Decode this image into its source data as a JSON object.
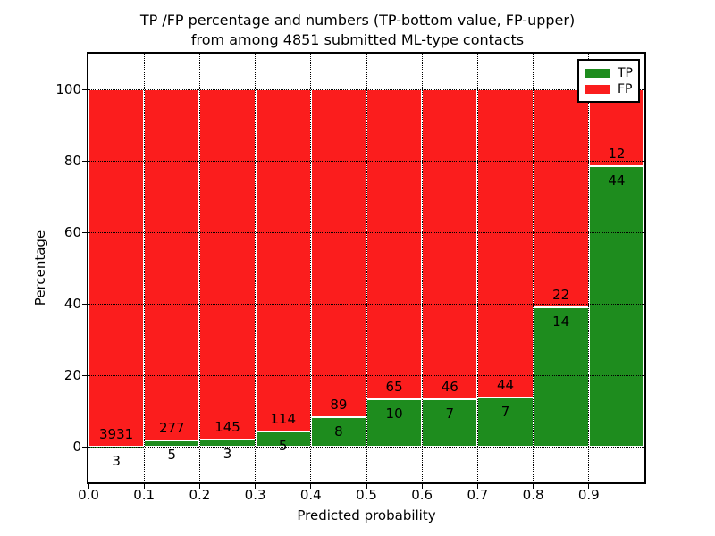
{
  "chart_data": {
    "type": "bar",
    "variant": "stacked-percentage",
    "title_lines": [
      "TP /FP percentage and numbers (TP-bottom value, FP-upper)",
      "from among 4851 submitted ML-type contacts"
    ],
    "xlabel": "Predicted probability",
    "ylabel": "Percentage",
    "x_tick_labels": [
      "0.0",
      "0.1",
      "0.2",
      "0.3",
      "0.4",
      "0.5",
      "0.6",
      "0.7",
      "0.8",
      "0.9"
    ],
    "y_ticks": [
      0,
      20,
      40,
      60,
      80,
      100
    ],
    "xlim": [
      0.0,
      1.0
    ],
    "ylim": [
      -10,
      110
    ],
    "grid": true,
    "grid_style": "dotted",
    "total_contacts": 4851,
    "legend": {
      "position": "upper-right",
      "entries": [
        {
          "label": "TP",
          "color": "#1e8c1e"
        },
        {
          "label": "FP",
          "color": "#fb1d1d"
        }
      ]
    },
    "colors": {
      "tp": "#1e8c1e",
      "fp": "#fb1d1d",
      "bar_edge": "#ffffff"
    },
    "bins": [
      {
        "range": "0.0-0.1",
        "tp": 3,
        "fp": 3931
      },
      {
        "range": "0.1-0.2",
        "tp": 5,
        "fp": 277
      },
      {
        "range": "0.2-0.3",
        "tp": 3,
        "fp": 145
      },
      {
        "range": "0.3-0.4",
        "tp": 5,
        "fp": 114
      },
      {
        "range": "0.4-0.5",
        "tp": 8,
        "fp": 89
      },
      {
        "range": "0.5-0.6",
        "tp": 10,
        "fp": 65
      },
      {
        "range": "0.6-0.7",
        "tp": 7,
        "fp": 46
      },
      {
        "range": "0.7-0.8",
        "tp": 7,
        "fp": 44
      },
      {
        "range": "0.8-0.9",
        "tp": 14,
        "fp": 22
      },
      {
        "range": "0.9-1.0",
        "tp": 44,
        "fp": 12
      }
    ]
  }
}
